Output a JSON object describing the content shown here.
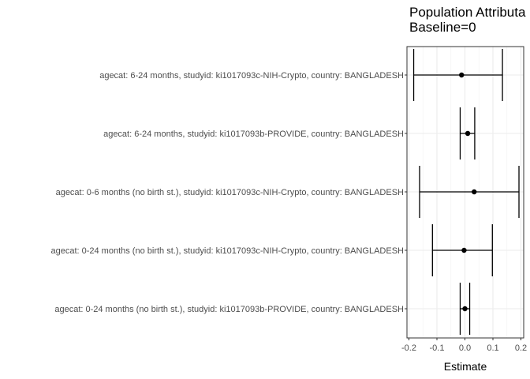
{
  "chart_data": {
    "type": "forest",
    "title": "Population Attributa",
    "subtitle": "Baseline=0",
    "xlabel": "Estimate",
    "ylabel": "",
    "xlim": [
      -0.2,
      0.2
    ],
    "x_ticks": [
      -0.2,
      -0.1,
      0.0,
      0.1,
      0.2
    ],
    "x_tick_labels": [
      "-0.2",
      "-0.1",
      "0.0",
      "0.1",
      "0.2"
    ],
    "grid": true,
    "categories": [
      "agecat: 6-24 months, studyid: ki1017093c-NIH-Crypto, country: BANGLADESH",
      "agecat: 6-24 months, studyid: ki1017093b-PROVIDE, country: BANGLADESH",
      "agecat: 0-6 months (no birth st.), studyid: ki1017093c-NIH-Crypto, country: BANGLADESH",
      "agecat: 0-24 months (no birth st.), studyid: ki1017093c-NIH-Crypto, country: BANGLADESH",
      "agecat: 0-24 months (no birth st.), studyid: ki1017093b-PROVIDE, country: BANGLADESH"
    ],
    "estimates": [
      -0.012,
      0.01,
      0.033,
      -0.003,
      0.0
    ],
    "lower": [
      -0.183,
      -0.017,
      -0.162,
      -0.116,
      -0.017
    ],
    "upper": [
      0.134,
      0.035,
      0.193,
      0.098,
      0.017
    ]
  }
}
